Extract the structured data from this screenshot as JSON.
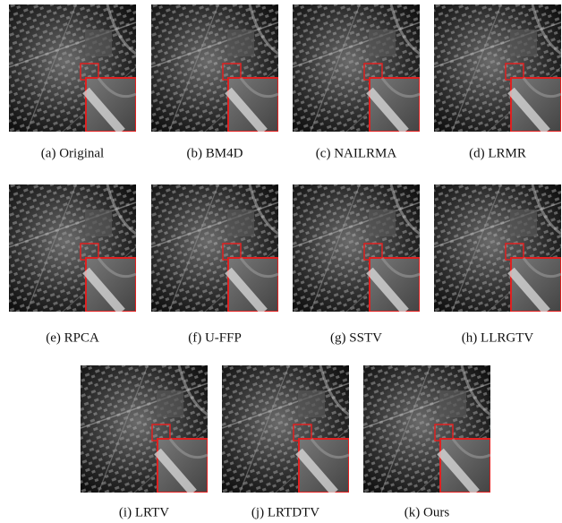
{
  "panels": [
    {
      "caption": "(a) Original"
    },
    {
      "caption": "(b) BM4D"
    },
    {
      "caption": "(c) NAILRMA"
    },
    {
      "caption": "(d) LRMR"
    },
    {
      "caption": "(e) RPCA"
    },
    {
      "caption": "(f) U-FFP"
    },
    {
      "caption": "(g) SSTV"
    },
    {
      "caption": "(h) LLRGTV"
    },
    {
      "caption": "(i) LRTV"
    },
    {
      "caption": "(j) LRTDTV"
    },
    {
      "caption": "(k) Ours"
    }
  ]
}
